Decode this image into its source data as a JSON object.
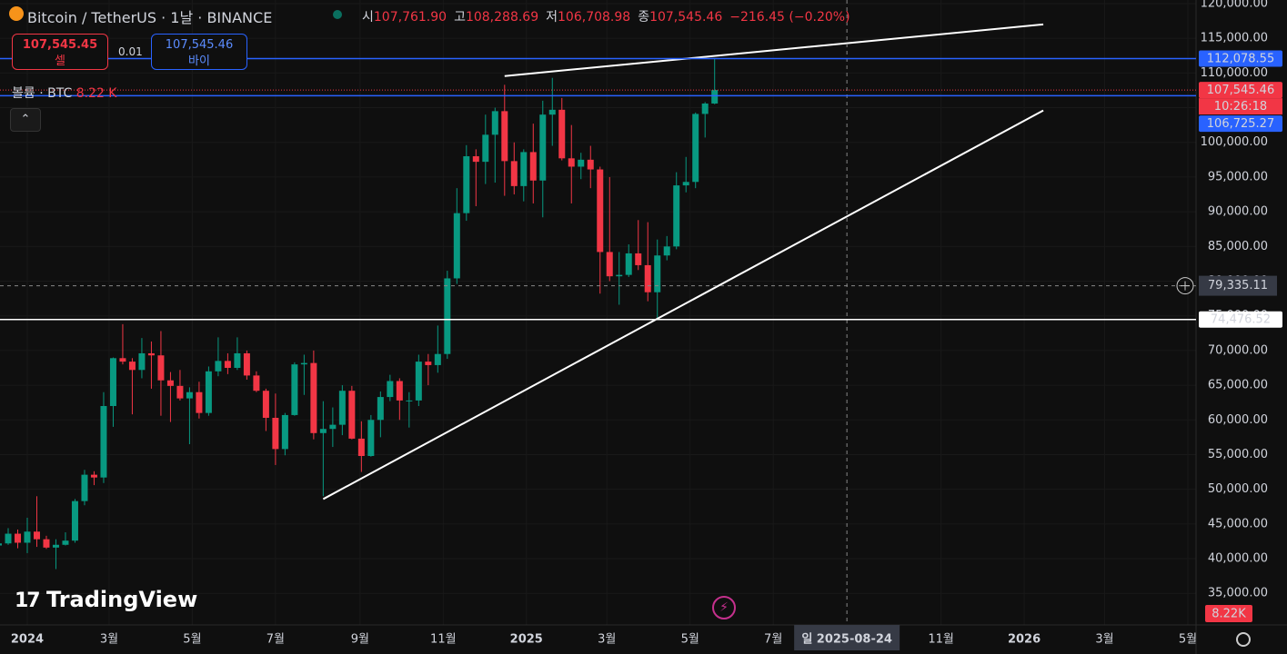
{
  "header": {
    "symbol": "Bitcoin / TetherUS · 1날 · BINANCE",
    "ohlc": [
      {
        "label": "시",
        "value": "107,761.90"
      },
      {
        "label": "고",
        "value": "108,288.69"
      },
      {
        "label": "저",
        "value": "106,708.98"
      },
      {
        "label": "종",
        "value": "107,545.46"
      }
    ],
    "change": "−216.45 (−0.20%)"
  },
  "trade": {
    "sell_price": "107,545.45",
    "sell": "셀",
    "spread": "0.01",
    "buy_price": "107,545.46",
    "buy": "바이"
  },
  "volume": {
    "label": "볼륨 · BTC",
    "value": "8.22 K",
    "axis_label": "8.22K"
  },
  "logo": "TradingView",
  "chart_data": {
    "type": "candlestick",
    "up_color": "#089981",
    "down_color": "#f23645",
    "grid": true,
    "x": [
      -21,
      -14,
      -7,
      0,
      7,
      14,
      21,
      28,
      35,
      42,
      49,
      56,
      63,
      70,
      77,
      84,
      91,
      98,
      105,
      112,
      119,
      126,
      133,
      140,
      147,
      154,
      161,
      168,
      175,
      182,
      189,
      196,
      203,
      210,
      217,
      224,
      231,
      238,
      245,
      252,
      259,
      266,
      273,
      280,
      287,
      294,
      301,
      308,
      315,
      322,
      329,
      336,
      343,
      350,
      357,
      364,
      371,
      378,
      385,
      392,
      399,
      406,
      413,
      420,
      427,
      434,
      441,
      448,
      455,
      462,
      469,
      476,
      483,
      490,
      497,
      504
    ],
    "open": [
      41900,
      42200,
      43600,
      42300,
      43900,
      42800,
      41600,
      42000,
      42600,
      48300,
      52100,
      51700,
      62000,
      68900,
      68400,
      67200,
      69600,
      69300,
      65700,
      64900,
      63100,
      64000,
      61000,
      67000,
      68500,
      67500,
      69600,
      66400,
      64200,
      60300,
      55800,
      60700,
      68000,
      68200,
      58100,
      58700,
      59300,
      64200,
      57300,
      54800,
      60000,
      63300,
      65600,
      62800,
      62800,
      68400,
      67900,
      69500,
      80400,
      89800,
      98000,
      97200,
      101100,
      104500,
      97300,
      93700,
      98600,
      94500,
      104000,
      104700,
      97700,
      96500,
      97500,
      96100,
      84200,
      80700,
      80900,
      84000,
      82300,
      78400,
      83700,
      85000,
      93800,
      94300,
      104100,
      105600
    ],
    "high": [
      43400,
      44400,
      44200,
      45900,
      49000,
      43300,
      42800,
      43800,
      48600,
      52800,
      52600,
      64000,
      69000,
      73800,
      68900,
      71800,
      71300,
      72800,
      66900,
      67200,
      64700,
      65500,
      67700,
      71900,
      69600,
      71900,
      70000,
      67000,
      64500,
      63800,
      61000,
      68300,
      69400,
      70000,
      62700,
      61800,
      65000,
      64900,
      59800,
      60700,
      64100,
      66500,
      66000,
      64000,
      69400,
      69500,
      73600,
      81500,
      93400,
      99600,
      99000,
      104000,
      105000,
      108300,
      100000,
      99000,
      102700,
      106000,
      109300,
      106400,
      102500,
      98500,
      99500,
      96500,
      95000,
      84200,
      85300,
      88800,
      88500,
      86000,
      86500,
      95700,
      97900,
      104300,
      105800,
      112000
    ],
    "low": [
      40300,
      42000,
      41500,
      40800,
      41700,
      41400,
      38500,
      41900,
      42300,
      47700,
      50600,
      50900,
      59000,
      68000,
      60800,
      66000,
      64500,
      60600,
      59700,
      62800,
      56500,
      60200,
      60600,
      66300,
      66600,
      67200,
      65800,
      64000,
      58400,
      53500,
      54900,
      60600,
      63600,
      57200,
      49000,
      56100,
      57800,
      57200,
      52500,
      54700,
      57500,
      62700,
      60000,
      58900,
      62000,
      65000,
      66800,
      68800,
      79600,
      88700,
      90800,
      94000,
      94200,
      92300,
      92500,
      91500,
      91200,
      89200,
      99500,
      97400,
      91200,
      94700,
      93400,
      78200,
      80000,
      76600,
      80600,
      81600,
      77100,
      74500,
      83000,
      84600,
      92800,
      93400,
      100700,
      105500
    ],
    "close": [
      42200,
      43600,
      42300,
      43900,
      42800,
      41600,
      42000,
      42600,
      48300,
      52100,
      51700,
      62000,
      68900,
      68400,
      67200,
      69600,
      69300,
      65700,
      64900,
      63100,
      64000,
      61000,
      67000,
      68500,
      67500,
      69600,
      66400,
      64200,
      60300,
      55800,
      60700,
      68000,
      68200,
      58100,
      58700,
      59300,
      64200,
      57300,
      54800,
      60000,
      63300,
      65600,
      62800,
      62800,
      68400,
      67900,
      69500,
      80400,
      89800,
      98000,
      97200,
      101100,
      104500,
      97300,
      93700,
      98600,
      94500,
      104000,
      104700,
      97700,
      96500,
      97500,
      96100,
      84200,
      80700,
      80900,
      84000,
      82300,
      78400,
      83700,
      85000,
      93800,
      94300,
      104100,
      105600,
      107545.46
    ],
    "xlim": [
      -20,
      857
    ],
    "ylim": [
      30450,
      120520
    ],
    "xticks": [
      {
        "value": 0,
        "label": "2024"
      },
      {
        "value": 60,
        "label": "3월"
      },
      {
        "value": 121,
        "label": "5월"
      },
      {
        "value": 182,
        "label": "7월"
      },
      {
        "value": 244,
        "label": "9월"
      },
      {
        "value": 305,
        "label": "11월"
      },
      {
        "value": 366,
        "label": "2025"
      },
      {
        "value": 425,
        "label": "3월"
      },
      {
        "value": 486,
        "label": "5월"
      },
      {
        "value": 547,
        "label": "7월"
      },
      {
        "value": 670,
        "label": "11월"
      },
      {
        "value": 731,
        "label": "2026"
      },
      {
        "value": 790,
        "label": "3월"
      },
      {
        "value": 851,
        "label": "5월"
      }
    ],
    "yticks": [
      {
        "value": 120000,
        "label": "120,000.00"
      },
      {
        "value": 115000,
        "label": "115,000.00"
      },
      {
        "value": 110000,
        "label": "110,000.00"
      },
      {
        "value": 105000,
        "label": "105,000.00"
      },
      {
        "value": 100000,
        "label": "100,000.00"
      },
      {
        "value": 95000,
        "label": "95,000.00"
      },
      {
        "value": 90000,
        "label": "90,000.00"
      },
      {
        "value": 85000,
        "label": "85,000.00"
      },
      {
        "value": 80000,
        "label": "80,000.00"
      },
      {
        "value": 75000,
        "label": "75,000.00"
      },
      {
        "value": 70000,
        "label": "70,000.00"
      },
      {
        "value": 65000,
        "label": "65,000.00"
      },
      {
        "value": 60000,
        "label": "60,000.00"
      },
      {
        "value": 55000,
        "label": "55,000.00"
      },
      {
        "value": 50000,
        "label": "50,000.00"
      },
      {
        "value": 45000,
        "label": "45,000.00"
      },
      {
        "value": 40000,
        "label": "40,000.00"
      },
      {
        "value": 35000,
        "label": "35,000.00"
      }
    ],
    "levels": [
      {
        "value": 112078.55,
        "label": "112,078.55",
        "color": "#2962ff",
        "style": "solid"
      },
      {
        "value": 107545.46,
        "label": "107,545.46",
        "color": "#f23645",
        "style": "dotted",
        "countdown": "10:26:18"
      },
      {
        "value": 106725.27,
        "label": "106,725.27",
        "color": "#2962ff",
        "style": "solid"
      },
      {
        "value": 74476.52,
        "label": "74,476.52",
        "color": "#ffffff",
        "style": "solid"
      }
    ],
    "trendlines": [
      {
        "x": [
          350,
          745
        ],
        "y": [
          109560,
          117000
        ],
        "color": "#ffffff"
      },
      {
        "x": [
          217,
          745
        ],
        "y": [
          48590,
          104600
        ],
        "color": "#ffffff"
      }
    ],
    "crosshair": {
      "x": {
        "value": 601,
        "label": "일 2025-08-24"
      },
      "y": {
        "value": 79335.11,
        "label": "79,335.11"
      }
    }
  }
}
